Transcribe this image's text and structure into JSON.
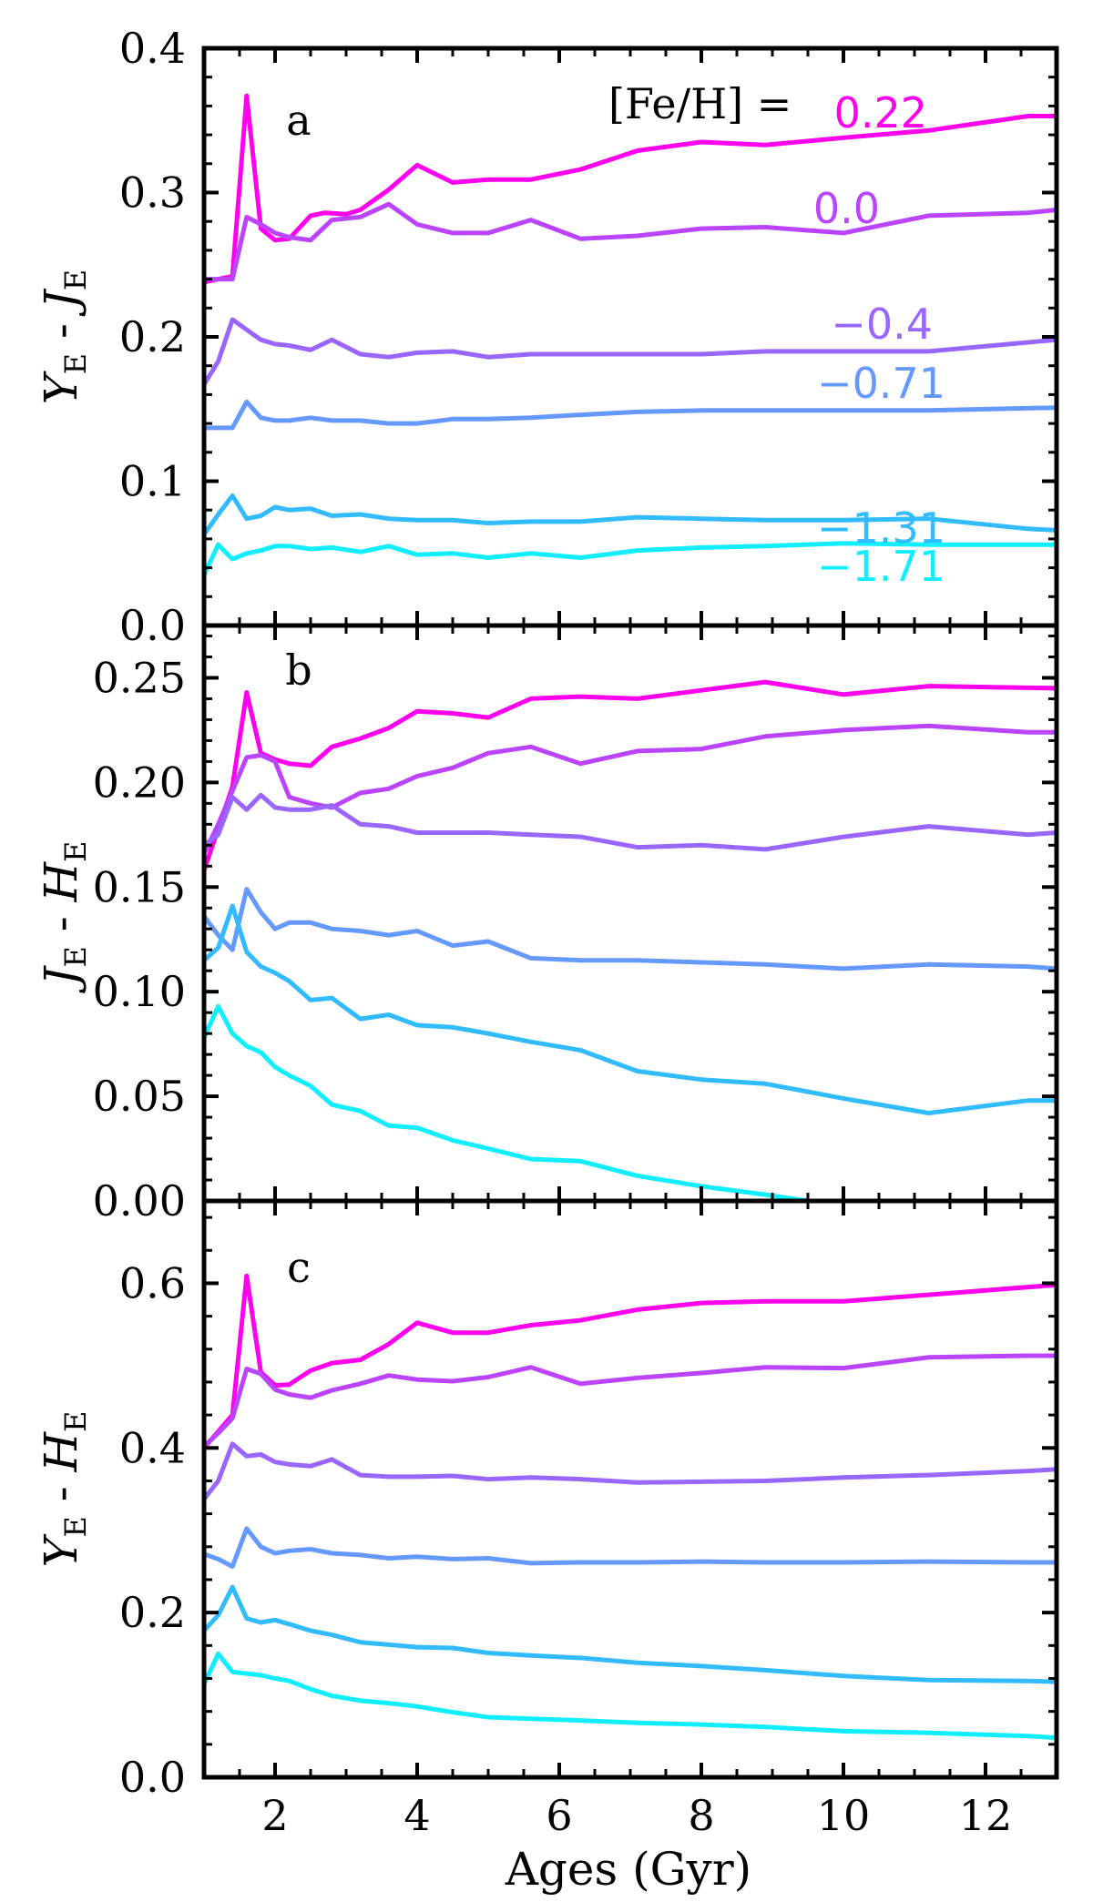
{
  "chart_data": {
    "type": "line",
    "shared_x": {
      "xlabel": "Ages (Gyr)",
      "xlim": [
        1.0,
        13.0
      ],
      "xticks": [
        "2",
        "4",
        "6",
        "8",
        "10",
        "12"
      ]
    },
    "legend_title": "[Fe/H] =",
    "series_labels": [
      "0.22",
      "0.0",
      "−0.4",
      "−0.71",
      "−1.31",
      "−1.71"
    ],
    "colors": [
      "#ff00ee",
      "#bb44ff",
      "#9966ff",
      "#6699ff",
      "#33bbff",
      "#11eeff"
    ],
    "panels": [
      {
        "letter": "a",
        "ylabel": "Y_E - J_E",
        "ylim": [
          0.0,
          0.4
        ],
        "yticks": [
          "0.0",
          "0.1",
          "0.2",
          "0.3",
          "0.4"
        ],
        "series": [
          {
            "x": [
              1.0,
              1.4,
              1.6,
              1.8,
              2.0,
              2.2,
              2.5,
              2.7,
              3.0,
              3.2,
              3.6,
              4.0,
              4.5,
              5.0,
              5.6,
              6.3,
              7.1,
              8.0,
              8.9,
              10.0,
              11.2,
              12.6,
              13.0
            ],
            "y": [
              0.238,
              0.242,
              0.367,
              0.275,
              0.267,
              0.268,
              0.284,
              0.286,
              0.285,
              0.288,
              0.302,
              0.319,
              0.307,
              0.309,
              0.309,
              0.316,
              0.329,
              0.335,
              0.333,
              0.338,
              0.343,
              0.353,
              0.353
            ]
          },
          {
            "x": [
              1.0,
              1.4,
              1.6,
              1.8,
              2.0,
              2.2,
              2.5,
              2.8,
              3.2,
              3.6,
              4.0,
              4.5,
              5.0,
              5.6,
              6.3,
              7.1,
              8.0,
              8.9,
              10.0,
              11.2,
              12.6,
              13.0
            ],
            "y": [
              0.24,
              0.24,
              0.283,
              0.278,
              0.272,
              0.269,
              0.267,
              0.281,
              0.283,
              0.292,
              0.278,
              0.272,
              0.272,
              0.281,
              0.268,
              0.27,
              0.275,
              0.276,
              0.272,
              0.284,
              0.286,
              0.288
            ]
          },
          {
            "x": [
              1.0,
              1.2,
              1.4,
              1.6,
              1.8,
              2.0,
              2.2,
              2.5,
              2.8,
              3.2,
              3.6,
              4.0,
              4.5,
              5.0,
              5.6,
              6.3,
              7.1,
              8.0,
              8.9,
              10.0,
              11.2,
              13.0
            ],
            "y": [
              0.167,
              0.183,
              0.212,
              0.205,
              0.198,
              0.195,
              0.194,
              0.191,
              0.198,
              0.188,
              0.186,
              0.189,
              0.19,
              0.186,
              0.188,
              0.188,
              0.188,
              0.188,
              0.19,
              0.19,
              0.19,
              0.198
            ]
          },
          {
            "x": [
              1.0,
              1.4,
              1.6,
              1.8,
              2.0,
              2.2,
              2.5,
              2.8,
              3.2,
              3.6,
              4.0,
              4.5,
              5.0,
              5.6,
              6.3,
              7.1,
              8.0,
              8.9,
              10.0,
              11.2,
              13.0
            ],
            "y": [
              0.137,
              0.137,
              0.155,
              0.144,
              0.142,
              0.142,
              0.144,
              0.142,
              0.142,
              0.14,
              0.14,
              0.143,
              0.143,
              0.144,
              0.146,
              0.148,
              0.149,
              0.149,
              0.149,
              0.149,
              0.151
            ]
          },
          {
            "x": [
              1.0,
              1.2,
              1.4,
              1.6,
              1.8,
              2.0,
              2.2,
              2.5,
              2.8,
              3.2,
              3.6,
              4.0,
              4.5,
              5.0,
              5.6,
              6.3,
              7.1,
              8.0,
              8.9,
              10.0,
              11.2,
              12.6,
              13.0
            ],
            "y": [
              0.063,
              0.077,
              0.09,
              0.074,
              0.076,
              0.082,
              0.08,
              0.081,
              0.076,
              0.077,
              0.074,
              0.073,
              0.073,
              0.071,
              0.072,
              0.072,
              0.075,
              0.074,
              0.073,
              0.073,
              0.074,
              0.067,
              0.066
            ]
          },
          {
            "x": [
              1.0,
              1.2,
              1.4,
              1.6,
              1.8,
              2.0,
              2.2,
              2.5,
              2.8,
              3.2,
              3.6,
              4.0,
              4.5,
              5.0,
              5.6,
              6.3,
              7.1,
              8.0,
              8.9,
              10.0,
              11.2,
              13.0
            ],
            "y": [
              0.035,
              0.056,
              0.046,
              0.05,
              0.052,
              0.055,
              0.055,
              0.053,
              0.054,
              0.051,
              0.055,
              0.049,
              0.05,
              0.047,
              0.05,
              0.047,
              0.052,
              0.054,
              0.055,
              0.057,
              0.056,
              0.056
            ]
          }
        ]
      },
      {
        "letter": "b",
        "ylabel": "J_E - H_E",
        "ylim": [
          0.0,
          0.275
        ],
        "yticks": [
          "0.00",
          "0.05",
          "0.10",
          "0.15",
          "0.20",
          "0.25"
        ],
        "series": [
          {
            "x": [
              1.0,
              1.4,
              1.6,
              1.8,
              2.0,
              2.2,
              2.5,
              2.8,
              3.2,
              3.6,
              4.0,
              4.5,
              5.0,
              5.6,
              6.3,
              7.1,
              8.0,
              8.9,
              10.0,
              11.2,
              13.0
            ],
            "y": [
              0.158,
              0.198,
              0.243,
              0.214,
              0.211,
              0.209,
              0.208,
              0.217,
              0.221,
              0.226,
              0.234,
              0.233,
              0.231,
              0.24,
              0.241,
              0.24,
              0.244,
              0.248,
              0.242,
              0.246,
              0.245
            ]
          },
          {
            "x": [
              1.0,
              1.2,
              1.4,
              1.6,
              1.8,
              2.0,
              2.2,
              2.5,
              2.8,
              3.2,
              3.6,
              4.0,
              4.5,
              5.0,
              5.6,
              6.3,
              7.1,
              8.0,
              8.9,
              10.0,
              11.2,
              12.6,
              13.0
            ],
            "y": [
              0.166,
              0.18,
              0.196,
              0.212,
              0.213,
              0.21,
              0.193,
              0.19,
              0.188,
              0.195,
              0.197,
              0.203,
              0.207,
              0.214,
              0.217,
              0.209,
              0.215,
              0.216,
              0.222,
              0.225,
              0.227,
              0.224,
              0.224
            ]
          },
          {
            "x": [
              1.0,
              1.2,
              1.4,
              1.6,
              1.8,
              2.0,
              2.2,
              2.5,
              2.8,
              3.2,
              3.6,
              4.0,
              4.5,
              5.0,
              5.6,
              6.3,
              7.1,
              8.0,
              8.9,
              10.0,
              11.2,
              12.6,
              13.0
            ],
            "y": [
              0.17,
              0.175,
              0.193,
              0.187,
              0.194,
              0.188,
              0.187,
              0.187,
              0.189,
              0.18,
              0.179,
              0.176,
              0.176,
              0.176,
              0.175,
              0.174,
              0.169,
              0.17,
              0.168,
              0.174,
              0.179,
              0.175,
              0.176
            ]
          },
          {
            "x": [
              1.0,
              1.2,
              1.4,
              1.6,
              1.8,
              2.0,
              2.2,
              2.5,
              2.8,
              3.2,
              3.6,
              4.0,
              4.5,
              5.0,
              5.6,
              6.3,
              7.1,
              8.0,
              8.9,
              10.0,
              11.2,
              12.6,
              13.0
            ],
            "y": [
              0.136,
              0.127,
              0.12,
              0.149,
              0.138,
              0.13,
              0.133,
              0.133,
              0.13,
              0.129,
              0.127,
              0.129,
              0.122,
              0.124,
              0.116,
              0.115,
              0.115,
              0.114,
              0.113,
              0.111,
              0.113,
              0.112,
              0.111
            ]
          },
          {
            "x": [
              1.0,
              1.2,
              1.4,
              1.6,
              1.8,
              2.0,
              2.2,
              2.5,
              2.8,
              3.2,
              3.6,
              4.0,
              4.5,
              5.0,
              5.6,
              6.3,
              7.1,
              8.0,
              8.9,
              10.0,
              11.2,
              12.6,
              13.0
            ],
            "y": [
              0.115,
              0.121,
              0.141,
              0.119,
              0.112,
              0.109,
              0.105,
              0.096,
              0.097,
              0.087,
              0.089,
              0.084,
              0.083,
              0.08,
              0.076,
              0.072,
              0.062,
              0.058,
              0.056,
              0.049,
              0.042,
              0.048,
              0.048
            ]
          },
          {
            "x": [
              1.0,
              1.2,
              1.4,
              1.6,
              1.8,
              2.0,
              2.2,
              2.5,
              2.8,
              3.2,
              3.6,
              4.0,
              4.5,
              5.0,
              5.6,
              6.3,
              7.1,
              8.0,
              8.9,
              9.5
            ],
            "y": [
              0.078,
              0.093,
              0.08,
              0.074,
              0.071,
              0.064,
              0.06,
              0.055,
              0.046,
              0.043,
              0.036,
              0.035,
              0.029,
              0.025,
              0.02,
              0.019,
              0.012,
              0.007,
              0.003,
              0.0
            ]
          }
        ]
      },
      {
        "letter": "c",
        "ylabel": "Y_E - H_E",
        "ylim": [
          0.0,
          0.7
        ],
        "yticks": [
          "0.0",
          "0.2",
          "0.4",
          "0.6"
        ],
        "series": [
          {
            "x": [
              1.0,
              1.4,
              1.6,
              1.8,
              2.0,
              2.2,
              2.5,
              2.8,
              3.2,
              3.6,
              4.0,
              4.5,
              5.0,
              5.6,
              6.3,
              7.1,
              8.0,
              8.9,
              10.0,
              11.2,
              13.0
            ],
            "y": [
              0.4,
              0.44,
              0.609,
              0.492,
              0.476,
              0.477,
              0.494,
              0.503,
              0.507,
              0.526,
              0.552,
              0.54,
              0.54,
              0.549,
              0.555,
              0.568,
              0.576,
              0.578,
              0.578,
              0.586,
              0.598
            ]
          },
          {
            "x": [
              1.0,
              1.2,
              1.4,
              1.6,
              1.8,
              2.0,
              2.2,
              2.5,
              2.8,
              3.2,
              3.6,
              4.0,
              4.5,
              5.0,
              5.6,
              6.3,
              7.1,
              8.0,
              8.9,
              10.0,
              11.2,
              12.6,
              13.0
            ],
            "y": [
              0.402,
              0.418,
              0.436,
              0.496,
              0.49,
              0.471,
              0.465,
              0.461,
              0.47,
              0.478,
              0.488,
              0.483,
              0.481,
              0.486,
              0.498,
              0.478,
              0.485,
              0.491,
              0.498,
              0.497,
              0.51,
              0.512,
              0.512
            ]
          },
          {
            "x": [
              1.0,
              1.2,
              1.4,
              1.6,
              1.8,
              2.0,
              2.2,
              2.5,
              2.8,
              3.2,
              3.6,
              4.0,
              4.5,
              5.0,
              5.6,
              6.3,
              7.1,
              8.0,
              8.9,
              10.0,
              11.2,
              12.6,
              13.0
            ],
            "y": [
              0.338,
              0.36,
              0.405,
              0.39,
              0.392,
              0.383,
              0.38,
              0.378,
              0.386,
              0.367,
              0.365,
              0.365,
              0.366,
              0.362,
              0.364,
              0.362,
              0.358,
              0.359,
              0.36,
              0.364,
              0.367,
              0.372,
              0.374
            ]
          },
          {
            "x": [
              1.0,
              1.2,
              1.4,
              1.6,
              1.8,
              2.0,
              2.2,
              2.5,
              2.8,
              3.2,
              3.6,
              4.0,
              4.5,
              5.0,
              5.6,
              6.3,
              7.1,
              8.0,
              8.9,
              10.0,
              11.2,
              12.6,
              13.0
            ],
            "y": [
              0.271,
              0.265,
              0.256,
              0.302,
              0.28,
              0.272,
              0.275,
              0.277,
              0.272,
              0.27,
              0.266,
              0.268,
              0.265,
              0.266,
              0.26,
              0.261,
              0.261,
              0.262,
              0.261,
              0.261,
              0.262,
              0.261,
              0.261
            ]
          },
          {
            "x": [
              1.0,
              1.2,
              1.4,
              1.6,
              1.8,
              2.0,
              2.2,
              2.5,
              2.8,
              3.2,
              3.6,
              4.0,
              4.5,
              5.0,
              5.6,
              6.3,
              7.1,
              8.0,
              8.9,
              10.0,
              11.2,
              12.6,
              13.0
            ],
            "y": [
              0.178,
              0.197,
              0.231,
              0.193,
              0.188,
              0.191,
              0.186,
              0.178,
              0.173,
              0.164,
              0.161,
              0.158,
              0.157,
              0.151,
              0.148,
              0.145,
              0.139,
              0.135,
              0.13,
              0.123,
              0.118,
              0.117,
              0.116
            ]
          },
          {
            "x": [
              1.0,
              1.2,
              1.4,
              1.6,
              1.8,
              2.0,
              2.2,
              2.5,
              2.8,
              3.2,
              3.6,
              4.0,
              4.5,
              5.0,
              5.6,
              6.3,
              7.1,
              8.0,
              8.9,
              10.0,
              11.2,
              12.6,
              13.0
            ],
            "y": [
              0.113,
              0.15,
              0.128,
              0.126,
              0.124,
              0.12,
              0.117,
              0.107,
              0.099,
              0.093,
              0.09,
              0.086,
              0.079,
              0.073,
              0.071,
              0.069,
              0.066,
              0.064,
              0.061,
              0.056,
              0.054,
              0.05,
              0.048
            ]
          }
        ]
      }
    ]
  }
}
